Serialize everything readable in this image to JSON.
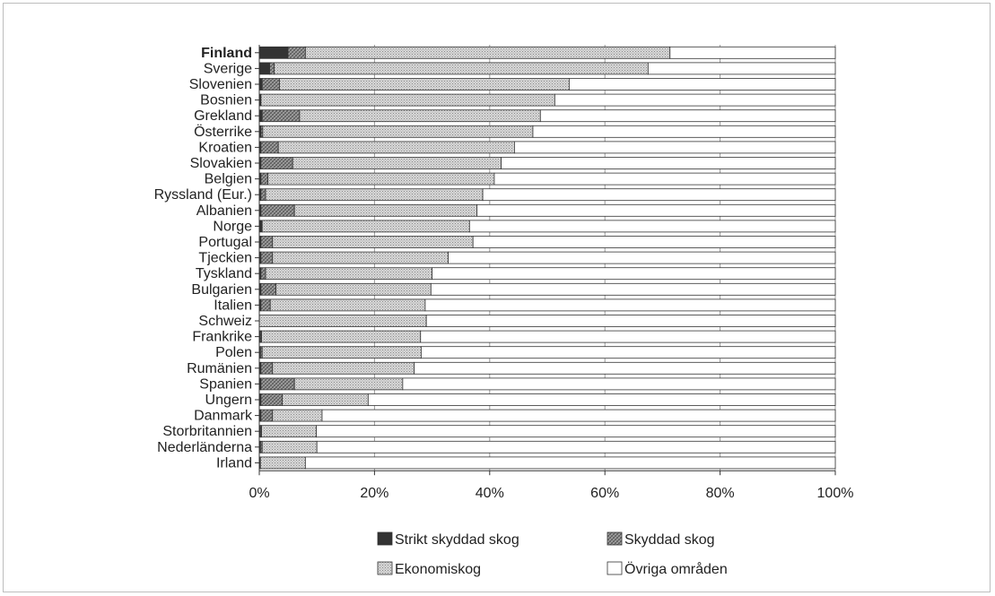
{
  "chart_data": {
    "type": "bar",
    "orientation": "horizontal",
    "stacked": true,
    "percent_axis": true,
    "xlim": [
      0,
      100
    ],
    "x_ticks": [
      "0%",
      "20%",
      "40%",
      "60%",
      "80%",
      "100%"
    ],
    "grid": true,
    "legend_position": "bottom",
    "categories": [
      "Finland",
      "Sverige",
      "Slovenien",
      "Bosnien",
      "Grekland",
      "Österrike",
      "Kroatien",
      "Slovakien",
      "Belgien",
      "Ryssland (Eur.)",
      "Albanien",
      "Norge",
      "Portugal",
      "Tjeckien",
      "Tyskland",
      "Bulgarien",
      "Italien",
      "Schweiz",
      "Frankrike",
      "Polen",
      "Rumänien",
      "Spanien",
      "Ungern",
      "Danmark",
      "Storbritannien",
      "Nederländerna",
      "Irland"
    ],
    "highlighted_category": "Finland",
    "series": [
      {
        "name": "Strikt skyddad skog",
        "color": "#333333",
        "pattern": "solid",
        "values": [
          5.0,
          1.8,
          0.5,
          0.3,
          0.5,
          0.3,
          0.3,
          0.3,
          0.3,
          0.3,
          0.3,
          0.5,
          0.3,
          0.3,
          0.3,
          0.3,
          0.3,
          0,
          0.2,
          0.2,
          0.3,
          0.3,
          0.3,
          0.3,
          0.2,
          0.2,
          0.2
        ]
      },
      {
        "name": "Skyddad skog",
        "color": "#888888",
        "pattern": "crosshatch",
        "values": [
          3.0,
          0.8,
          3.0,
          0,
          6.5,
          0.3,
          3.0,
          5.5,
          1.2,
          0.8,
          5.8,
          0,
          2.0,
          2.0,
          0.8,
          2.6,
          1.6,
          0,
          0.2,
          0.3,
          2.0,
          5.8,
          3.7,
          2.0,
          0.2,
          0.3,
          0
        ]
      },
      {
        "name": "Ekonomiskog",
        "color": "#cccccc",
        "pattern": "dots",
        "values": [
          63.3,
          64.9,
          50.3,
          51.0,
          41.8,
          46.9,
          41.0,
          36.2,
          39.3,
          37.7,
          31.7,
          36.0,
          34.8,
          30.5,
          28.9,
          26.9,
          26.9,
          29.0,
          27.6,
          27.6,
          24.6,
          18.8,
          14.9,
          8.6,
          9.5,
          9.5,
          7.8
        ]
      },
      {
        "name": "Övriga områden",
        "color": "#ffffff",
        "pattern": "none",
        "values": [
          28.7,
          32.5,
          46.2,
          48.7,
          51.2,
          52.5,
          55.7,
          58.0,
          59.2,
          61.2,
          62.2,
          63.5,
          62.9,
          67.2,
          70.0,
          70.2,
          71.2,
          71.0,
          72.0,
          71.9,
          73.1,
          75.1,
          81.1,
          89.1,
          90.1,
          90.0,
          92.0
        ]
      }
    ]
  }
}
